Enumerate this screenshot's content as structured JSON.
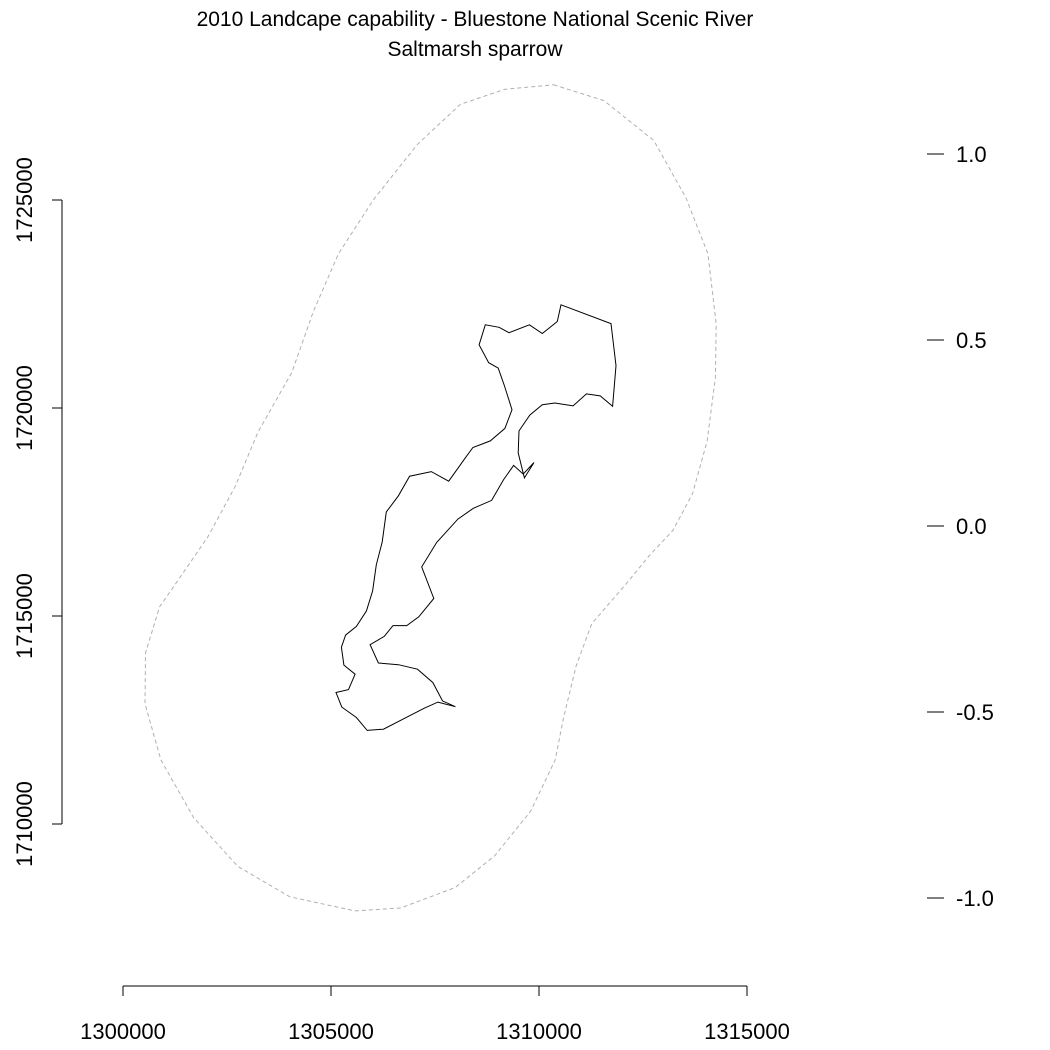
{
  "title": "2010 Landcape capability - Bluestone National Scenic River",
  "subtitle": "Saltmarsh sparrow",
  "map": {
    "x_axis": {
      "range": [
        1300000,
        1315000
      ],
      "ticks": [
        1300000,
        1305000,
        1310000,
        1315000
      ],
      "tick_labels": [
        "1300000",
        "1305000",
        "1310000",
        "1315000"
      ]
    },
    "y_axis": {
      "range": [
        1710000,
        1725000
      ],
      "ticks": [
        1710000,
        1715000,
        1720000,
        1725000
      ],
      "tick_labels": [
        "1710000",
        "1715000",
        "1720000",
        "1725000"
      ]
    },
    "legend_axis": {
      "ticks": [
        1.0,
        0.5,
        0.0,
        -0.5,
        -1.0
      ],
      "tick_labels": [
        "1.0",
        "0.5",
        "0.0",
        "-0.5",
        "-1.0"
      ]
    },
    "park_boundary": {
      "color": "#000000",
      "style": "solid",
      "coordinates": [
        [
          1310530,
          1722480
        ],
        [
          1311730,
          1722030
        ],
        [
          1311850,
          1721020
        ],
        [
          1311770,
          1720040
        ],
        [
          1311470,
          1720290
        ],
        [
          1311140,
          1720340
        ],
        [
          1310820,
          1720050
        ],
        [
          1310380,
          1720120
        ],
        [
          1310080,
          1720080
        ],
        [
          1309780,
          1719830
        ],
        [
          1309520,
          1719450
        ],
        [
          1309500,
          1718920
        ],
        [
          1309650,
          1718320
        ],
        [
          1309880,
          1718690
        ],
        [
          1309620,
          1718410
        ],
        [
          1309390,
          1718620
        ],
        [
          1309150,
          1718280
        ],
        [
          1308860,
          1717780
        ],
        [
          1308420,
          1717590
        ],
        [
          1308050,
          1717330
        ],
        [
          1307540,
          1716770
        ],
        [
          1307180,
          1716180
        ],
        [
          1307470,
          1715420
        ],
        [
          1307110,
          1714980
        ],
        [
          1306820,
          1714770
        ],
        [
          1306490,
          1714770
        ],
        [
          1306280,
          1714510
        ],
        [
          1305940,
          1714310
        ],
        [
          1306140,
          1713870
        ],
        [
          1306620,
          1713830
        ],
        [
          1307080,
          1713720
        ],
        [
          1307450,
          1713400
        ],
        [
          1307680,
          1712960
        ],
        [
          1307990,
          1712820
        ],
        [
          1307570,
          1712930
        ],
        [
          1307230,
          1712780
        ],
        [
          1306770,
          1712540
        ],
        [
          1306260,
          1712280
        ],
        [
          1305870,
          1712250
        ],
        [
          1305610,
          1712560
        ],
        [
          1305260,
          1712810
        ],
        [
          1305120,
          1713160
        ],
        [
          1305420,
          1713230
        ],
        [
          1305580,
          1713600
        ],
        [
          1305310,
          1713820
        ],
        [
          1305250,
          1714250
        ],
        [
          1305350,
          1714540
        ],
        [
          1305610,
          1714750
        ],
        [
          1305850,
          1715120
        ],
        [
          1306000,
          1715600
        ],
        [
          1306090,
          1716230
        ],
        [
          1306230,
          1716780
        ],
        [
          1306330,
          1717500
        ],
        [
          1306620,
          1717890
        ],
        [
          1306890,
          1718360
        ],
        [
          1307410,
          1718470
        ],
        [
          1307830,
          1718240
        ],
        [
          1308200,
          1718760
        ],
        [
          1308410,
          1719050
        ],
        [
          1308830,
          1719210
        ],
        [
          1309180,
          1719510
        ],
        [
          1309350,
          1719960
        ],
        [
          1309170,
          1720530
        ],
        [
          1309020,
          1720960
        ],
        [
          1308790,
          1721090
        ],
        [
          1308560,
          1721520
        ],
        [
          1308710,
          1722000
        ],
        [
          1309040,
          1721940
        ],
        [
          1309280,
          1721810
        ],
        [
          1309770,
          1722000
        ],
        [
          1310080,
          1721790
        ],
        [
          1310440,
          1722080
        ],
        [
          1310530,
          1722480
        ]
      ]
    },
    "buffer_boundary": {
      "color": "#b0b0b0",
      "style": "dashed",
      "coordinates": [
        [
          1310350,
          1727770
        ],
        [
          1311560,
          1727390
        ],
        [
          1312760,
          1726430
        ],
        [
          1313530,
          1725060
        ],
        [
          1314060,
          1723710
        ],
        [
          1314260,
          1722020
        ],
        [
          1314240,
          1720730
        ],
        [
          1314040,
          1719200
        ],
        [
          1313690,
          1717940
        ],
        [
          1313220,
          1717060
        ],
        [
          1312650,
          1716450
        ],
        [
          1312060,
          1715730
        ],
        [
          1311270,
          1714820
        ],
        [
          1310890,
          1713790
        ],
        [
          1310590,
          1712550
        ],
        [
          1310390,
          1711540
        ],
        [
          1309800,
          1710310
        ],
        [
          1308930,
          1709230
        ],
        [
          1307980,
          1708470
        ],
        [
          1306670,
          1707980
        ],
        [
          1305580,
          1707910
        ],
        [
          1304010,
          1708250
        ],
        [
          1302760,
          1708980
        ],
        [
          1301700,
          1710150
        ],
        [
          1300910,
          1711540
        ],
        [
          1300530,
          1712890
        ],
        [
          1300540,
          1714110
        ],
        [
          1300880,
          1715220
        ],
        [
          1301490,
          1716100
        ],
        [
          1302050,
          1716920
        ],
        [
          1302700,
          1718120
        ],
        [
          1303250,
          1719430
        ],
        [
          1304060,
          1720860
        ],
        [
          1304580,
          1722330
        ],
        [
          1305180,
          1723710
        ],
        [
          1306030,
          1725020
        ],
        [
          1307080,
          1726340
        ],
        [
          1308110,
          1727300
        ],
        [
          1309180,
          1727660
        ],
        [
          1310350,
          1727770
        ]
      ]
    }
  }
}
